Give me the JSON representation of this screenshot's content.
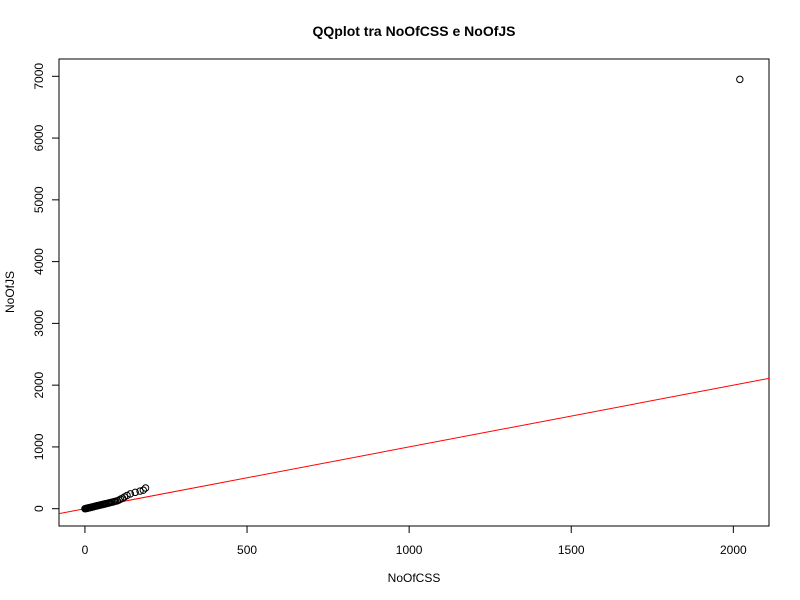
{
  "chart_data": {
    "type": "scatter",
    "title": "QQplot tra NoOfCSS e NoOfJS",
    "xlabel": "NoOfCSS",
    "ylabel": "NoOfJS",
    "xlim": [
      -80,
      2110
    ],
    "ylim": [
      -280,
      7280
    ],
    "xticks": [
      0,
      500,
      1000,
      1500,
      2000
    ],
    "yticks": [
      0,
      1000,
      2000,
      3000,
      4000,
      5000,
      6000,
      7000
    ],
    "grid": false,
    "series": [
      {
        "marker": "open-circle",
        "color": "#000000",
        "points": [
          [
            0,
            0
          ],
          [
            2,
            2
          ],
          [
            4,
            4
          ],
          [
            5,
            5
          ],
          [
            7,
            8
          ],
          [
            8,
            10
          ],
          [
            10,
            12
          ],
          [
            12,
            14
          ],
          [
            14,
            16
          ],
          [
            15,
            18
          ],
          [
            17,
            20
          ],
          [
            19,
            22
          ],
          [
            21,
            25
          ],
          [
            23,
            28
          ],
          [
            25,
            30
          ],
          [
            27,
            33
          ],
          [
            29,
            36
          ],
          [
            31,
            38
          ],
          [
            33,
            41
          ],
          [
            35,
            44
          ],
          [
            37,
            47
          ],
          [
            40,
            50
          ],
          [
            42,
            53
          ],
          [
            45,
            56
          ],
          [
            48,
            60
          ],
          [
            50,
            63
          ],
          [
            53,
            66
          ],
          [
            56,
            70
          ],
          [
            59,
            74
          ],
          [
            62,
            78
          ],
          [
            65,
            82
          ],
          [
            68,
            86
          ],
          [
            72,
            90
          ],
          [
            75,
            95
          ],
          [
            79,
            100
          ],
          [
            83,
            105
          ],
          [
            87,
            110
          ],
          [
            91,
            116
          ],
          [
            95,
            122
          ],
          [
            100,
            128
          ],
          [
            105,
            140
          ],
          [
            110,
            155
          ],
          [
            116,
            170
          ],
          [
            122,
            190
          ],
          [
            130,
            215
          ],
          [
            140,
            240
          ],
          [
            155,
            265
          ],
          [
            170,
            285
          ],
          [
            180,
            300
          ],
          [
            187,
            335
          ],
          [
            2020,
            6950
          ]
        ]
      }
    ],
    "reference_line": {
      "color": "#ff0000",
      "intercept": 0,
      "slope": 1
    }
  }
}
